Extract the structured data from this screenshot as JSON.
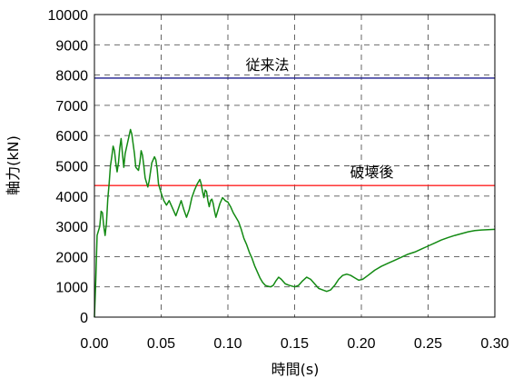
{
  "chart_data": {
    "type": "line",
    "title": "",
    "xlabel": "時間(s)",
    "ylabel": "軸力(kN)",
    "xlim": [
      0,
      0.3
    ],
    "ylim": [
      0,
      10000
    ],
    "x_ticks": [
      "0.00",
      "0.05",
      "0.10",
      "0.15",
      "0.20",
      "0.25",
      "0.30"
    ],
    "y_ticks": [
      "0",
      "1000",
      "2000",
      "3000",
      "4000",
      "5000",
      "6000",
      "7000",
      "8000",
      "9000",
      "10000"
    ],
    "grid": "dashed",
    "reference_lines": [
      {
        "label": "従来法",
        "y": 7900,
        "color": "#1f1f8f"
      },
      {
        "label": "破壊後",
        "y": 4350,
        "color": "#ff2020"
      }
    ],
    "series": [
      {
        "color": "#138a13",
        "points": [
          [
            0.0,
            0
          ],
          [
            0.001,
            1200
          ],
          [
            0.002,
            2700
          ],
          [
            0.004,
            3000
          ],
          [
            0.005,
            3500
          ],
          [
            0.006,
            3450
          ],
          [
            0.007,
            3000
          ],
          [
            0.008,
            2700
          ],
          [
            0.009,
            3100
          ],
          [
            0.01,
            3900
          ],
          [
            0.011,
            4400
          ],
          [
            0.012,
            5000
          ],
          [
            0.013,
            5300
          ],
          [
            0.014,
            5650
          ],
          [
            0.015,
            5500
          ],
          [
            0.016,
            5100
          ],
          [
            0.017,
            4800
          ],
          [
            0.018,
            5100
          ],
          [
            0.019,
            5600
          ],
          [
            0.02,
            5900
          ],
          [
            0.021,
            5400
          ],
          [
            0.022,
            4950
          ],
          [
            0.023,
            5400
          ],
          [
            0.025,
            5800
          ],
          [
            0.027,
            6200
          ],
          [
            0.028,
            6050
          ],
          [
            0.03,
            5400
          ],
          [
            0.031,
            4950
          ],
          [
            0.033,
            4850
          ],
          [
            0.034,
            5100
          ],
          [
            0.035,
            5500
          ],
          [
            0.036,
            5350
          ],
          [
            0.037,
            5000
          ],
          [
            0.038,
            4600
          ],
          [
            0.04,
            4300
          ],
          [
            0.041,
            4500
          ],
          [
            0.043,
            5100
          ],
          [
            0.045,
            5300
          ],
          [
            0.046,
            5200
          ],
          [
            0.047,
            4900
          ],
          [
            0.048,
            4400
          ],
          [
            0.05,
            4100
          ],
          [
            0.052,
            3850
          ],
          [
            0.054,
            3700
          ],
          [
            0.056,
            3850
          ],
          [
            0.058,
            3650
          ],
          [
            0.061,
            3350
          ],
          [
            0.063,
            3600
          ],
          [
            0.065,
            3850
          ],
          [
            0.067,
            3550
          ],
          [
            0.069,
            3300
          ],
          [
            0.071,
            3550
          ],
          [
            0.073,
            3950
          ],
          [
            0.075,
            4200
          ],
          [
            0.077,
            4400
          ],
          [
            0.079,
            4550
          ],
          [
            0.08,
            4400
          ],
          [
            0.081,
            4150
          ],
          [
            0.082,
            3950
          ],
          [
            0.083,
            4200
          ],
          [
            0.084,
            4150
          ],
          [
            0.085,
            3850
          ],
          [
            0.086,
            3650
          ],
          [
            0.087,
            3850
          ],
          [
            0.088,
            3900
          ],
          [
            0.089,
            3750
          ],
          [
            0.09,
            3500
          ],
          [
            0.091,
            3300
          ],
          [
            0.092,
            3450
          ],
          [
            0.094,
            3750
          ],
          [
            0.096,
            3950
          ],
          [
            0.098,
            3850
          ],
          [
            0.1,
            3800
          ],
          [
            0.102,
            3650
          ],
          [
            0.104,
            3450
          ],
          [
            0.106,
            3300
          ],
          [
            0.108,
            3150
          ],
          [
            0.11,
            2900
          ],
          [
            0.112,
            2600
          ],
          [
            0.114,
            2400
          ],
          [
            0.116,
            2150
          ],
          [
            0.118,
            1950
          ],
          [
            0.12,
            1700
          ],
          [
            0.122,
            1500
          ],
          [
            0.124,
            1300
          ],
          [
            0.126,
            1150
          ],
          [
            0.128,
            1050
          ],
          [
            0.13,
            1020
          ],
          [
            0.132,
            1000
          ],
          [
            0.134,
            1050
          ],
          [
            0.136,
            1200
          ],
          [
            0.138,
            1320
          ],
          [
            0.14,
            1250
          ],
          [
            0.143,
            1100
          ],
          [
            0.146,
            1050
          ],
          [
            0.15,
            1000
          ],
          [
            0.153,
            1050
          ],
          [
            0.156,
            1200
          ],
          [
            0.159,
            1320
          ],
          [
            0.162,
            1250
          ],
          [
            0.165,
            1100
          ],
          [
            0.168,
            950
          ],
          [
            0.171,
            900
          ],
          [
            0.174,
            850
          ],
          [
            0.177,
            900
          ],
          [
            0.18,
            1050
          ],
          [
            0.183,
            1250
          ],
          [
            0.186,
            1380
          ],
          [
            0.189,
            1420
          ],
          [
            0.192,
            1380
          ],
          [
            0.195,
            1300
          ],
          [
            0.198,
            1220
          ],
          [
            0.201,
            1250
          ],
          [
            0.205,
            1380
          ],
          [
            0.21,
            1550
          ],
          [
            0.215,
            1680
          ],
          [
            0.22,
            1780
          ],
          [
            0.225,
            1880
          ],
          [
            0.23,
            1980
          ],
          [
            0.235,
            2080
          ],
          [
            0.24,
            2150
          ],
          [
            0.245,
            2250
          ],
          [
            0.25,
            2350
          ],
          [
            0.255,
            2450
          ],
          [
            0.26,
            2550
          ],
          [
            0.265,
            2630
          ],
          [
            0.27,
            2700
          ],
          [
            0.275,
            2760
          ],
          [
            0.28,
            2820
          ],
          [
            0.285,
            2860
          ],
          [
            0.29,
            2880
          ],
          [
            0.295,
            2890
          ],
          [
            0.3,
            2900
          ]
        ]
      }
    ]
  }
}
